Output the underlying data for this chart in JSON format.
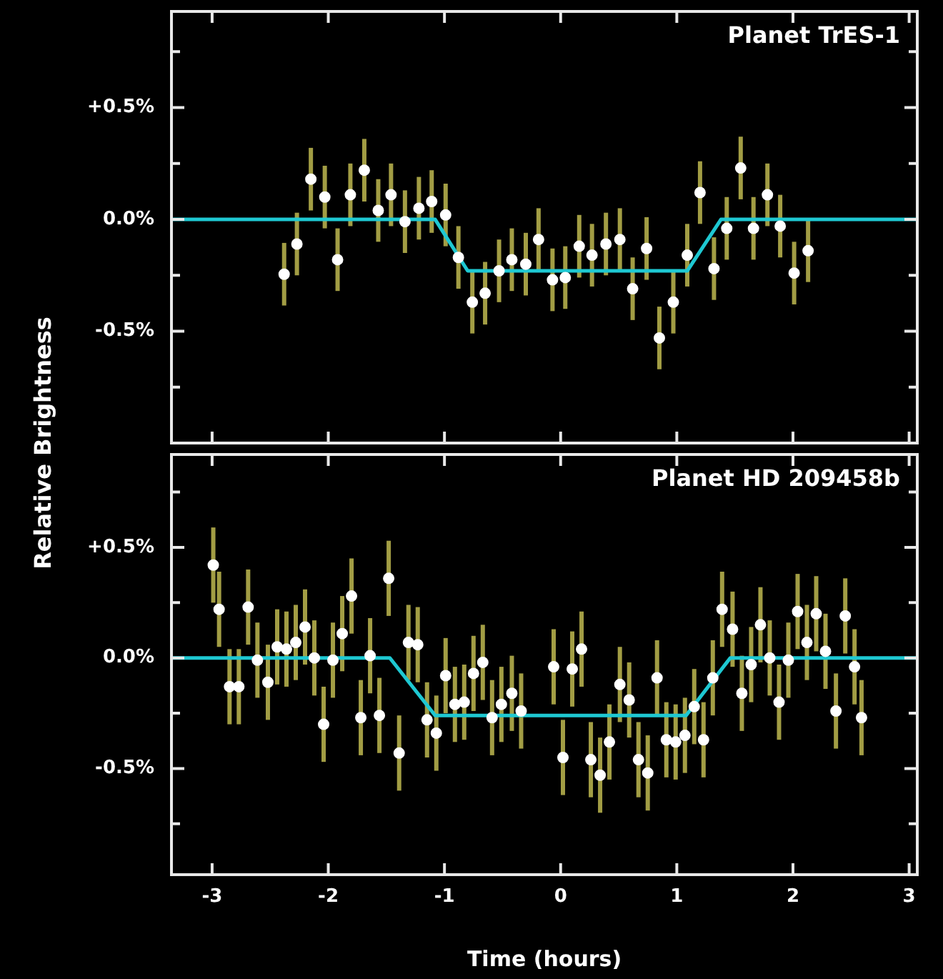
{
  "chart_data": [
    {
      "type": "scatter",
      "title": "Planet TrES-1",
      "ylabel": "Relative Brightness",
      "xlim": [
        -3.35,
        3.07
      ],
      "xticks": [
        -3,
        -2,
        -1,
        0,
        1,
        2,
        3
      ],
      "ylim": [
        -1.0,
        0.93
      ],
      "yticks": [
        {
          "value": 0.75,
          "label": null
        },
        {
          "value": 0.5,
          "label": "+0.5%"
        },
        {
          "value": 0.25,
          "label": null
        },
        {
          "value": 0,
          "label": "0.0%"
        },
        {
          "value": -0.25,
          "label": null
        },
        {
          "value": -0.5,
          "label": "-0.5%"
        },
        {
          "value": -0.75,
          "label": null
        }
      ],
      "tick_labels": "y",
      "grid": false,
      "series": [
        {
          "type": "scatter",
          "marker": "circle",
          "color": "#ffffff",
          "x": [
            -2.38,
            -2.27,
            -2.15,
            -2.03,
            -1.92,
            -1.81,
            -1.69,
            -1.57,
            -1.46,
            -1.34,
            -1.22,
            -1.11,
            -0.99,
            -0.88,
            -0.76,
            -0.65,
            -0.53,
            -0.42,
            -0.3,
            -0.19,
            -0.07,
            0.04,
            0.16,
            0.27,
            0.39,
            0.51,
            0.62,
            0.74,
            0.85,
            0.97,
            1.09,
            1.2,
            1.32,
            1.43,
            1.55,
            1.66,
            1.78,
            1.89,
            2.01,
            2.13
          ],
          "values": [
            -0.245,
            -0.11,
            0.18,
            0.1,
            -0.18,
            0.11,
            0.22,
            0.04,
            0.11,
            -0.01,
            0.05,
            0.08,
            0.02,
            -0.17,
            -0.37,
            -0.33,
            -0.23,
            -0.18,
            -0.2,
            -0.09,
            -0.27,
            -0.26,
            -0.12,
            -0.16,
            -0.11,
            -0.09,
            -0.31,
            -0.13,
            -0.53,
            -0.37,
            -0.16,
            0.12,
            -0.22,
            -0.04,
            0.23,
            -0.04,
            0.11,
            -0.03,
            -0.24,
            -0.14
          ],
          "errors": [
            0.14,
            0.14,
            0.14,
            0.14,
            0.14,
            0.14,
            0.14,
            0.14,
            0.14,
            0.14,
            0.14,
            0.14,
            0.14,
            0.14,
            0.14,
            0.14,
            0.14,
            0.14,
            0.14,
            0.14,
            0.14,
            0.14,
            0.14,
            0.14,
            0.14,
            0.14,
            0.14,
            0.14,
            0.14,
            0.14,
            0.14,
            0.14,
            0.14,
            0.14,
            0.14,
            0.14,
            0.14,
            0.14,
            0.14,
            0.14
          ]
        },
        {
          "type": "line",
          "color": "#1ec8d2",
          "x": [
            -3.35,
            -1.08,
            -0.8,
            1.09,
            1.38,
            3.07
          ],
          "values": [
            0,
            0,
            -0.23,
            -0.23,
            0,
            0
          ]
        }
      ]
    },
    {
      "type": "scatter",
      "title": "Planet HD 209458b",
      "xlabel": "Time (hours)",
      "xlim": [
        -3.35,
        3.07
      ],
      "xticks": [
        -3,
        -2,
        -1,
        0,
        1,
        2,
        3
      ],
      "ylim": [
        -0.98,
        0.92
      ],
      "yticks": [
        {
          "value": 0.75,
          "label": null
        },
        {
          "value": 0.5,
          "label": "+0.5%"
        },
        {
          "value": 0.25,
          "label": null
        },
        {
          "value": 0,
          "label": "0.0%"
        },
        {
          "value": -0.25,
          "label": null
        },
        {
          "value": -0.5,
          "label": "-0.5%"
        },
        {
          "value": -0.75,
          "label": null
        }
      ],
      "grid": false,
      "series": [
        {
          "type": "scatter",
          "marker": "circle",
          "color": "#ffffff",
          "x": [
            -2.99,
            -2.94,
            -2.85,
            -2.77,
            -2.69,
            -2.61,
            -2.52,
            -2.44,
            -2.36,
            -2.28,
            -2.2,
            -2.12,
            -2.04,
            -1.96,
            -1.88,
            -1.8,
            -1.72,
            -1.64,
            -1.56,
            -1.48,
            -1.39,
            -1.31,
            -1.23,
            -1.15,
            -1.07,
            -0.99,
            -0.91,
            -0.83,
            -0.75,
            -0.67,
            -0.59,
            -0.51,
            -0.42,
            -0.34,
            -0.06,
            0.02,
            0.1,
            0.18,
            0.26,
            0.34,
            0.42,
            0.51,
            0.59,
            0.67,
            0.75,
            0.83,
            0.91,
            0.99,
            1.07,
            1.15,
            1.23,
            1.31,
            1.39,
            1.48,
            1.56,
            1.64,
            1.72,
            1.8,
            1.88,
            1.96,
            2.04,
            2.12,
            2.2,
            2.28,
            2.37,
            2.45,
            2.53,
            2.59
          ],
          "values": [
            0.42,
            0.22,
            -0.13,
            -0.13,
            0.23,
            -0.01,
            -0.11,
            0.05,
            0.04,
            0.07,
            0.14,
            0.0,
            -0.3,
            -0.01,
            0.11,
            0.28,
            -0.27,
            0.01,
            -0.26,
            0.36,
            -0.43,
            0.07,
            0.06,
            -0.28,
            -0.34,
            -0.08,
            -0.21,
            -0.2,
            -0.07,
            -0.02,
            -0.27,
            -0.21,
            -0.16,
            -0.24,
            -0.04,
            -0.45,
            -0.05,
            0.04,
            -0.46,
            -0.53,
            -0.38,
            -0.12,
            -0.19,
            -0.46,
            -0.52,
            -0.09,
            -0.37,
            -0.38,
            -0.35,
            -0.22,
            -0.37,
            -0.09,
            0.22,
            0.13,
            -0.16,
            -0.03,
            0.15,
            0.0,
            -0.2,
            -0.01,
            0.21,
            0.07,
            0.2,
            0.03,
            -0.24,
            0.19,
            -0.04,
            -0.27
          ],
          "errors": [
            0.17,
            0.17,
            0.17,
            0.17,
            0.17,
            0.17,
            0.17,
            0.17,
            0.17,
            0.17,
            0.17,
            0.17,
            0.17,
            0.17,
            0.17,
            0.17,
            0.17,
            0.17,
            0.17,
            0.17,
            0.17,
            0.17,
            0.17,
            0.17,
            0.17,
            0.17,
            0.17,
            0.17,
            0.17,
            0.17,
            0.17,
            0.17,
            0.17,
            0.17,
            0.17,
            0.17,
            0.17,
            0.17,
            0.17,
            0.17,
            0.17,
            0.17,
            0.17,
            0.17,
            0.17,
            0.17,
            0.17,
            0.17,
            0.17,
            0.17,
            0.17,
            0.17,
            0.17,
            0.17,
            0.17,
            0.17,
            0.17,
            0.17,
            0.17,
            0.17,
            0.17,
            0.17,
            0.17,
            0.17,
            0.17,
            0.17,
            0.17,
            0.17
          ]
        },
        {
          "type": "line",
          "color": "#1ec8d2",
          "x": [
            -3.35,
            -1.47,
            -1.08,
            1.08,
            1.46,
            3.07
          ],
          "values": [
            0,
            0,
            -0.26,
            -0.26,
            0,
            0
          ]
        }
      ]
    }
  ]
}
